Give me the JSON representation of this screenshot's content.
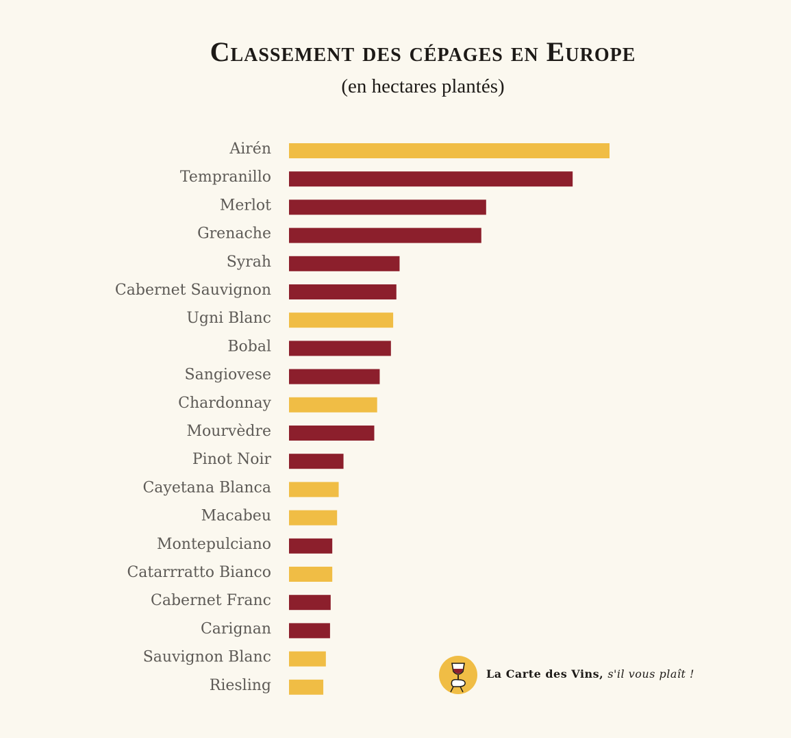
{
  "chart_data": {
    "type": "bar",
    "orientation": "horizontal",
    "title": "Classement des cépages en Europe",
    "subtitle": "(en hectares plantés)",
    "categories": [
      "Airén",
      "Tempranillo",
      "Merlot",
      "Grenache",
      "Syrah",
      "Cabernet Sauvignon",
      "Ugni Blanc",
      "Bobal",
      "Sangiovese",
      "Chardonnay",
      "Mourvèdre",
      "Pinot Noir",
      "Cayetana Blanca",
      "Macabeu",
      "Montepulciano",
      "Catarrratto Bianco",
      "Cabernet Franc",
      "Carignan",
      "Sauvignon Blanc",
      "Riesling"
    ],
    "values": [
      100,
      88.5,
      61.5,
      60,
      34.5,
      33.5,
      32.5,
      31.8,
      28.3,
      27.5,
      26.6,
      17.0,
      15.5,
      15.0,
      13.5,
      13.5,
      13.0,
      12.8,
      11.5,
      10.7
    ],
    "grape_color": [
      "white",
      "red",
      "red",
      "red",
      "red",
      "red",
      "white",
      "red",
      "red",
      "white",
      "red",
      "red",
      "white",
      "white",
      "red",
      "white",
      "red",
      "red",
      "white",
      "white"
    ],
    "colors": {
      "red": "#8c1f2c",
      "white": "#f0bd45"
    },
    "xlim": [
      0,
      100
    ],
    "grid": false
  },
  "brand": {
    "name": "La Carte des Vins,",
    "tagline": "s'il vous plaît !",
    "logo_icon": "wine-glass-hand-icon"
  }
}
